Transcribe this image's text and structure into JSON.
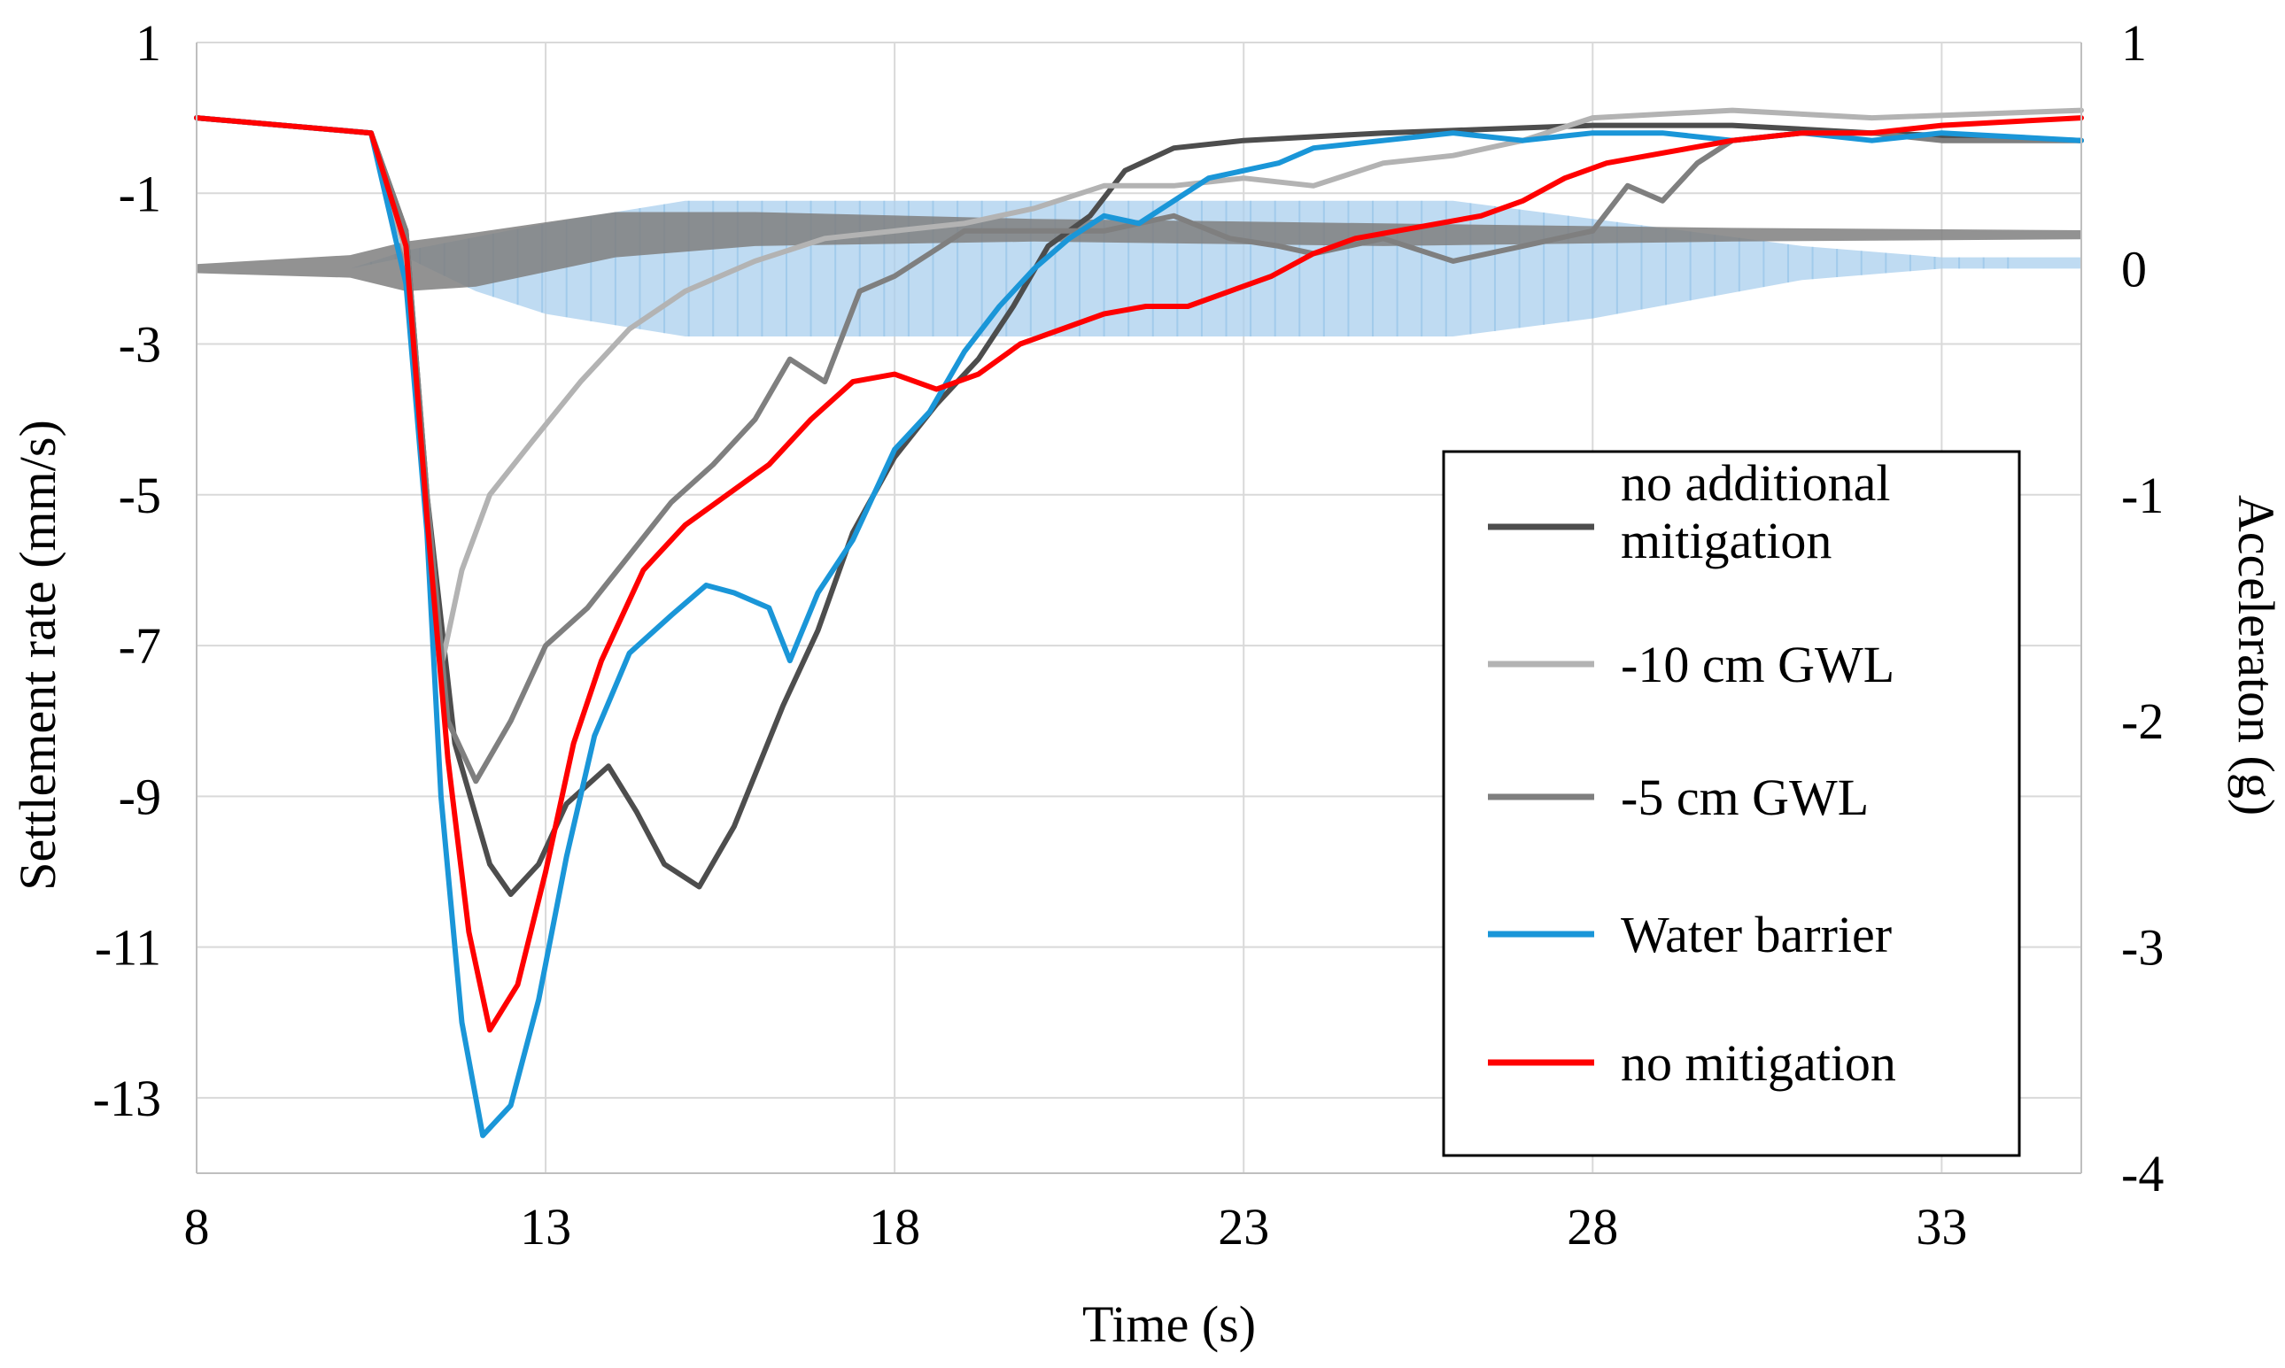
{
  "chart_data": {
    "type": "line",
    "title": "",
    "xlabel": "Time (s)",
    "ylabel": "Settlement rate (mm/s)",
    "y2label": "Acceleraton (g)",
    "xlim": [
      8,
      35
    ],
    "ylim": [
      -14,
      1
    ],
    "y2lim": [
      -4,
      1
    ],
    "xticks": [
      8,
      13,
      18,
      23,
      28,
      33
    ],
    "yticks": [
      1,
      -1,
      -3,
      -5,
      -7,
      -9,
      -11,
      -13
    ],
    "y2ticks": [
      1,
      0,
      -1,
      -2,
      -3,
      -4
    ],
    "grid": true,
    "legend_position": "right",
    "colors": {
      "accel_band": "#a9cfee",
      "accel_dark": "#7f7f7f"
    },
    "series": [
      {
        "name": "no additional mitigation",
        "color": "#4d4d4d",
        "points": [
          [
            8,
            0
          ],
          [
            10.5,
            -0.2
          ],
          [
            11.0,
            -1.5
          ],
          [
            11.3,
            -5
          ],
          [
            11.7,
            -8.3
          ],
          [
            12.2,
            -9.9
          ],
          [
            12.5,
            -10.3
          ],
          [
            12.9,
            -9.9
          ],
          [
            13.3,
            -9.1
          ],
          [
            13.9,
            -8.6
          ],
          [
            14.3,
            -9.2
          ],
          [
            14.7,
            -9.9
          ],
          [
            15.2,
            -10.2
          ],
          [
            15.7,
            -9.4
          ],
          [
            16.4,
            -7.8
          ],
          [
            16.9,
            -6.8
          ],
          [
            17.4,
            -5.5
          ],
          [
            18.0,
            -4.5
          ],
          [
            18.6,
            -3.8
          ],
          [
            19.2,
            -3.2
          ],
          [
            19.7,
            -2.5
          ],
          [
            20.2,
            -1.7
          ],
          [
            20.8,
            -1.3
          ],
          [
            21.3,
            -0.7
          ],
          [
            22,
            -0.4
          ],
          [
            23,
            -0.3
          ],
          [
            25,
            -0.2
          ],
          [
            28,
            -0.1
          ],
          [
            30,
            -0.1
          ],
          [
            32,
            -0.2
          ],
          [
            35,
            -0.3
          ]
        ]
      },
      {
        "name": "-10 cm GWL",
        "color": "#b3b3b3",
        "points": [
          [
            8,
            0
          ],
          [
            10.5,
            -0.2
          ],
          [
            11.0,
            -1.8
          ],
          [
            11.3,
            -5
          ],
          [
            11.5,
            -7.3
          ],
          [
            11.8,
            -6
          ],
          [
            12.2,
            -5
          ],
          [
            12.8,
            -4.3
          ],
          [
            13.5,
            -3.5
          ],
          [
            14.2,
            -2.8
          ],
          [
            15,
            -2.3
          ],
          [
            16,
            -1.9
          ],
          [
            17,
            -1.6
          ],
          [
            18,
            -1.5
          ],
          [
            19,
            -1.4
          ],
          [
            20,
            -1.2
          ],
          [
            21,
            -0.9
          ],
          [
            22,
            -0.9
          ],
          [
            23,
            -0.8
          ],
          [
            24,
            -0.9
          ],
          [
            25,
            -0.6
          ],
          [
            26,
            -0.5
          ],
          [
            27,
            -0.3
          ],
          [
            28,
            0
          ],
          [
            30,
            0.1
          ],
          [
            32,
            0
          ],
          [
            35,
            0.1
          ]
        ]
      },
      {
        "name": "-5 cm GWL",
        "color": "#7f7f7f",
        "points": [
          [
            8,
            0
          ],
          [
            10.5,
            -0.2
          ],
          [
            11.0,
            -1.5
          ],
          [
            11.3,
            -5
          ],
          [
            11.6,
            -8
          ],
          [
            12.0,
            -8.8
          ],
          [
            12.5,
            -8.0
          ],
          [
            13.0,
            -7.0
          ],
          [
            13.6,
            -6.5
          ],
          [
            14.2,
            -5.8
          ],
          [
            14.8,
            -5.1
          ],
          [
            15.4,
            -4.6
          ],
          [
            16,
            -4.0
          ],
          [
            16.5,
            -3.2
          ],
          [
            17,
            -3.5
          ],
          [
            17.5,
            -2.3
          ],
          [
            18,
            -2.1
          ],
          [
            18.5,
            -1.8
          ],
          [
            19,
            -1.5
          ],
          [
            20,
            -1.5
          ],
          [
            21,
            -1.5
          ],
          [
            22,
            -1.3
          ],
          [
            22.8,
            -1.6
          ],
          [
            23.5,
            -1.7
          ],
          [
            24,
            -1.8
          ],
          [
            25,
            -1.6
          ],
          [
            26,
            -1.9
          ],
          [
            27,
            -1.7
          ],
          [
            28,
            -1.5
          ],
          [
            28.5,
            -0.9
          ],
          [
            29,
            -1.1
          ],
          [
            29.5,
            -0.6
          ],
          [
            30,
            -0.3
          ],
          [
            31,
            -0.2
          ],
          [
            32,
            -0.2
          ],
          [
            33,
            -0.3
          ],
          [
            35,
            -0.3
          ]
        ]
      },
      {
        "name": "Water barrier",
        "color": "#1a96d8",
        "points": [
          [
            8,
            0
          ],
          [
            10.5,
            -0.2
          ],
          [
            11.0,
            -2.2
          ],
          [
            11.3,
            -5.5
          ],
          [
            11.5,
            -9
          ],
          [
            11.8,
            -12
          ],
          [
            12.1,
            -13.5
          ],
          [
            12.5,
            -13.1
          ],
          [
            12.9,
            -11.7
          ],
          [
            13.3,
            -9.8
          ],
          [
            13.7,
            -8.2
          ],
          [
            14.2,
            -7.1
          ],
          [
            14.8,
            -6.6
          ],
          [
            15.3,
            -6.2
          ],
          [
            15.7,
            -6.3
          ],
          [
            16.2,
            -6.5
          ],
          [
            16.5,
            -7.2
          ],
          [
            16.9,
            -6.3
          ],
          [
            17.4,
            -5.6
          ],
          [
            18,
            -4.4
          ],
          [
            18.5,
            -3.9
          ],
          [
            19,
            -3.1
          ],
          [
            19.5,
            -2.5
          ],
          [
            20,
            -2.0
          ],
          [
            20.5,
            -1.6
          ],
          [
            21,
            -1.3
          ],
          [
            21.5,
            -1.4
          ],
          [
            22,
            -1.1
          ],
          [
            22.5,
            -0.8
          ],
          [
            23,
            -0.7
          ],
          [
            23.5,
            -0.6
          ],
          [
            24,
            -0.4
          ],
          [
            25,
            -0.3
          ],
          [
            26,
            -0.2
          ],
          [
            27,
            -0.3
          ],
          [
            28,
            -0.2
          ],
          [
            29,
            -0.2
          ],
          [
            30,
            -0.3
          ],
          [
            31,
            -0.2
          ],
          [
            32,
            -0.3
          ],
          [
            33,
            -0.2
          ],
          [
            35,
            -0.3
          ]
        ]
      },
      {
        "name": "no mitigation",
        "color": "#ff0000",
        "points": [
          [
            8,
            0
          ],
          [
            10.5,
            -0.2
          ],
          [
            11.0,
            -1.7
          ],
          [
            11.3,
            -5.3
          ],
          [
            11.6,
            -8.5
          ],
          [
            11.9,
            -10.8
          ],
          [
            12.2,
            -12.1
          ],
          [
            12.6,
            -11.5
          ],
          [
            13.0,
            -10
          ],
          [
            13.4,
            -8.3
          ],
          [
            13.8,
            -7.2
          ],
          [
            14.4,
            -6.0
          ],
          [
            15,
            -5.4
          ],
          [
            15.6,
            -5.0
          ],
          [
            16.2,
            -4.6
          ],
          [
            16.8,
            -4.0
          ],
          [
            17.4,
            -3.5
          ],
          [
            18,
            -3.4
          ],
          [
            18.6,
            -3.6
          ],
          [
            19.2,
            -3.4
          ],
          [
            19.8,
            -3.0
          ],
          [
            20.4,
            -2.8
          ],
          [
            21,
            -2.6
          ],
          [
            21.6,
            -2.5
          ],
          [
            22.2,
            -2.5
          ],
          [
            22.8,
            -2.3
          ],
          [
            23.4,
            -2.1
          ],
          [
            24,
            -1.8
          ],
          [
            24.6,
            -1.6
          ],
          [
            25.2,
            -1.5
          ],
          [
            25.8,
            -1.4
          ],
          [
            26.4,
            -1.3
          ],
          [
            27,
            -1.1
          ],
          [
            27.6,
            -0.8
          ],
          [
            28.2,
            -0.6
          ],
          [
            28.8,
            -0.5
          ],
          [
            29.4,
            -0.4
          ],
          [
            30,
            -0.3
          ],
          [
            31,
            -0.2
          ],
          [
            32,
            -0.2
          ],
          [
            33,
            -0.1
          ],
          [
            35,
            0
          ]
        ]
      }
    ],
    "accel_envelope_g": [
      [
        8,
        0
      ],
      [
        10.2,
        0
      ],
      [
        11,
        0.05
      ],
      [
        12,
        -0.1
      ],
      [
        13,
        -0.2
      ],
      [
        14,
        -0.25
      ],
      [
        15,
        -0.3
      ],
      [
        22,
        -0.3
      ],
      [
        26,
        -0.3
      ],
      [
        28,
        -0.22
      ],
      [
        31,
        -0.05
      ],
      [
        33,
        0
      ],
      [
        35,
        0
      ]
    ],
    "accel_envelope_upper_g": [
      [
        8,
        0
      ],
      [
        10.2,
        0
      ],
      [
        11,
        0.08
      ],
      [
        12,
        0.14
      ],
      [
        13,
        0.2
      ],
      [
        14,
        0.25
      ],
      [
        15,
        0.3
      ],
      [
        22,
        0.3
      ],
      [
        26,
        0.3
      ],
      [
        28,
        0.22
      ],
      [
        31,
        0.1
      ],
      [
        33,
        0.05
      ],
      [
        35,
        0.05
      ]
    ],
    "accel_dark_band_g": [
      [
        8,
        -0.02,
        0.02
      ],
      [
        10.2,
        -0.04,
        0.06
      ],
      [
        11,
        -0.1,
        0.12
      ],
      [
        12,
        -0.08,
        0.16
      ],
      [
        14,
        0.05,
        0.25
      ],
      [
        16,
        0.1,
        0.25
      ],
      [
        20,
        0.12,
        0.22
      ],
      [
        25,
        0.1,
        0.2
      ],
      [
        30,
        0.12,
        0.18
      ],
      [
        35,
        0.13,
        0.17
      ]
    ]
  }
}
